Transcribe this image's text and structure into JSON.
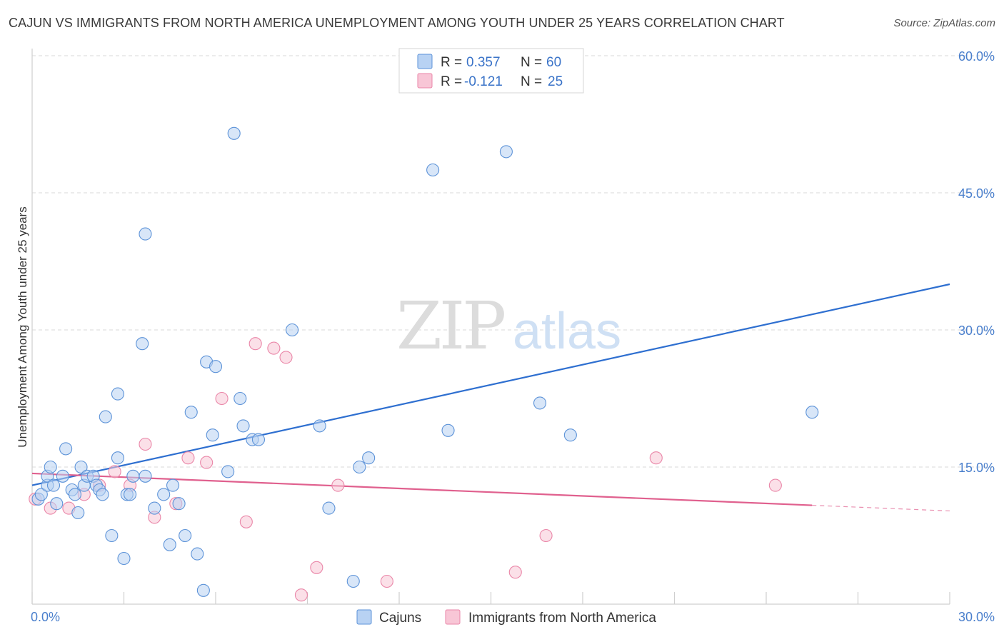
{
  "chart_data": {
    "type": "scatter",
    "title": "CAJUN VS IMMIGRANTS FROM NORTH AMERICA UNEMPLOYMENT AMONG YOUTH UNDER 25 YEARS CORRELATION CHART",
    "source": "Source: ZipAtlas.com",
    "xlabel": "",
    "ylabel": "Unemployment Among Youth under 25 years",
    "xlim": [
      0,
      30
    ],
    "ylim": [
      0,
      60
    ],
    "x_tick_labels": [
      {
        "value": 0,
        "label": "0.0%"
      },
      {
        "value": 30,
        "label": "30.0%"
      }
    ],
    "y_tick_labels": [
      {
        "value": 15,
        "label": "15.0%"
      },
      {
        "value": 30,
        "label": "30.0%"
      },
      {
        "value": 45,
        "label": "45.0%"
      },
      {
        "value": 60,
        "label": "60.0%"
      }
    ],
    "watermark": {
      "part1": "ZIP",
      "part2": "atlas"
    },
    "legend": {
      "r_label": "R =",
      "n_label": "N =",
      "rows": [
        {
          "series": "Cajuns",
          "r": "0.357",
          "n": "60"
        },
        {
          "series": "Immigrants from North America",
          "r": "-0.121",
          "n": "25"
        }
      ]
    },
    "colors": {
      "cajuns_fill": "#b8d2f3",
      "cajuns_stroke": "#5d93d8",
      "cajuns_line": "#2e6fd0",
      "immigrants_fill": "#f8c6d6",
      "immigrants_stroke": "#ea86a8",
      "immigrants_line": "#e0608e",
      "grid": "#d9d9d9",
      "tick": "#4a7fcc"
    },
    "series": [
      {
        "name": "Cajuns",
        "points": [
          [
            0.2,
            11.5
          ],
          [
            0.3,
            12.0
          ],
          [
            0.5,
            13.0
          ],
          [
            0.5,
            14.0
          ],
          [
            0.6,
            15.0
          ],
          [
            0.7,
            13.0
          ],
          [
            0.8,
            11.0
          ],
          [
            1.0,
            14.0
          ],
          [
            1.1,
            17.0
          ],
          [
            1.3,
            12.5
          ],
          [
            1.4,
            12.0
          ],
          [
            1.5,
            10.0
          ],
          [
            1.6,
            15.0
          ],
          [
            1.7,
            13.0
          ],
          [
            1.8,
            14.0
          ],
          [
            2.0,
            14.0
          ],
          [
            2.1,
            13.0
          ],
          [
            2.2,
            12.5
          ],
          [
            2.3,
            12.0
          ],
          [
            2.4,
            20.5
          ],
          [
            2.6,
            7.5
          ],
          [
            2.8,
            16.0
          ],
          [
            2.8,
            23.0
          ],
          [
            3.0,
            5.0
          ],
          [
            3.1,
            12.0
          ],
          [
            3.2,
            12.0
          ],
          [
            3.3,
            14.0
          ],
          [
            3.6,
            28.5
          ],
          [
            3.7,
            14.0
          ],
          [
            3.7,
            40.5
          ],
          [
            4.0,
            10.5
          ],
          [
            4.3,
            12.0
          ],
          [
            4.5,
            6.5
          ],
          [
            4.6,
            13.0
          ],
          [
            4.8,
            11.0
          ],
          [
            5.0,
            7.5
          ],
          [
            5.2,
            21.0
          ],
          [
            5.4,
            5.5
          ],
          [
            5.6,
            1.5
          ],
          [
            5.7,
            26.5
          ],
          [
            5.9,
            18.5
          ],
          [
            6.0,
            26.0
          ],
          [
            6.4,
            14.5
          ],
          [
            6.6,
            51.5
          ],
          [
            6.8,
            22.5
          ],
          [
            6.9,
            19.5
          ],
          [
            7.2,
            18.0
          ],
          [
            7.4,
            18.0
          ],
          [
            8.5,
            30.0
          ],
          [
            9.4,
            19.5
          ],
          [
            9.7,
            10.5
          ],
          [
            10.5,
            2.5
          ],
          [
            10.7,
            15.0
          ],
          [
            11.0,
            16.0
          ],
          [
            13.1,
            47.5
          ],
          [
            13.6,
            19.0
          ],
          [
            15.5,
            49.5
          ],
          [
            16.6,
            22.0
          ],
          [
            17.6,
            18.5
          ],
          [
            25.5,
            21.0
          ]
        ]
      },
      {
        "name": "Immigrants from North America",
        "points": [
          [
            0.1,
            11.5
          ],
          [
            0.6,
            10.5
          ],
          [
            1.2,
            10.5
          ],
          [
            1.7,
            12.0
          ],
          [
            2.2,
            13.0
          ],
          [
            2.7,
            14.5
          ],
          [
            3.2,
            13.0
          ],
          [
            3.7,
            17.5
          ],
          [
            4.0,
            9.5
          ],
          [
            4.7,
            11.0
          ],
          [
            5.1,
            16.0
          ],
          [
            5.7,
            15.5
          ],
          [
            6.2,
            22.5
          ],
          [
            7.0,
            9.0
          ],
          [
            7.3,
            28.5
          ],
          [
            7.9,
            28.0
          ],
          [
            8.3,
            27.0
          ],
          [
            8.8,
            1.0
          ],
          [
            9.3,
            4.0
          ],
          [
            10.0,
            13.0
          ],
          [
            11.6,
            2.5
          ],
          [
            16.8,
            7.5
          ],
          [
            15.8,
            3.5
          ],
          [
            20.4,
            16.0
          ],
          [
            24.3,
            13.0
          ]
        ]
      }
    ],
    "trendlines": [
      {
        "series": "Cajuns",
        "x": [
          0,
          30
        ],
        "y": [
          13.0,
          35.0
        ],
        "solid_until": 30
      },
      {
        "series": "Immigrants from North America",
        "x": [
          0,
          30
        ],
        "y": [
          14.3,
          10.2
        ],
        "solid_until": 25.5
      }
    ]
  }
}
